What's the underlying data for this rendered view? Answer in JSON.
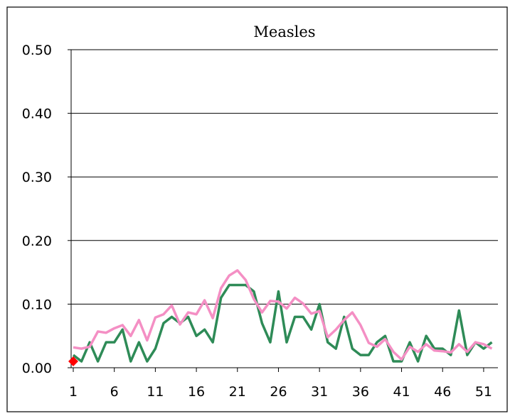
{
  "chart_data": {
    "type": "line",
    "title": "Measles",
    "xlabel": "",
    "ylabel": "",
    "ylim": [
      0,
      0.5
    ],
    "xlim": [
      1,
      52
    ],
    "yticks": [
      "0.00",
      "0.10",
      "0.20",
      "0.30",
      "0.40",
      "0.50"
    ],
    "xticks": [
      "1",
      "6",
      "11",
      "16",
      "21",
      "26",
      "31",
      "36",
      "41",
      "46",
      "51"
    ],
    "grid": true,
    "legend": "none",
    "series": [
      {
        "color": "#2e8b57",
        "x": [
          1,
          2,
          3,
          4,
          5,
          6,
          7,
          8,
          9,
          10,
          11,
          12,
          13,
          14,
          15,
          16,
          17,
          18,
          19,
          20,
          21,
          22,
          23,
          24,
          25,
          26,
          27,
          28,
          29,
          30,
          31,
          32,
          33,
          34,
          35,
          36,
          37,
          38,
          39,
          40,
          41,
          42,
          43,
          44,
          45,
          46,
          47,
          48,
          49,
          50,
          51,
          52
        ],
        "values": [
          0.02,
          0.01,
          0.04,
          0.01,
          0.04,
          0.04,
          0.06,
          0.01,
          0.04,
          0.01,
          0.03,
          0.07,
          0.08,
          0.07,
          0.08,
          0.05,
          0.06,
          0.04,
          0.11,
          0.13,
          0.13,
          0.13,
          0.12,
          0.07,
          0.04,
          0.12,
          0.04,
          0.08,
          0.08,
          0.06,
          0.1,
          0.04,
          0.03,
          0.08,
          0.03,
          0.02,
          0.02,
          0.04,
          0.05,
          0.01,
          0.01,
          0.04,
          0.01,
          0.05,
          0.03,
          0.03,
          0.02,
          0.09,
          0.02,
          0.04,
          0.03,
          0.04
        ]
      },
      {
        "color": "#f48fc4",
        "x": [
          1,
          2,
          3,
          4,
          5,
          6,
          7,
          8,
          9,
          10,
          11,
          12,
          13,
          14,
          15,
          16,
          17,
          18,
          19,
          20,
          21,
          22,
          23,
          24,
          25,
          26,
          27,
          28,
          29,
          30,
          31,
          32,
          33,
          34,
          35,
          36,
          37,
          38,
          39,
          40,
          41,
          42,
          43,
          44,
          45,
          46,
          47,
          48,
          49,
          50,
          51,
          52
        ],
        "values": [
          0.032,
          0.03,
          0.033,
          0.057,
          0.055,
          0.062,
          0.067,
          0.05,
          0.075,
          0.043,
          0.079,
          0.084,
          0.098,
          0.068,
          0.087,
          0.084,
          0.106,
          0.078,
          0.125,
          0.145,
          0.153,
          0.138,
          0.108,
          0.087,
          0.105,
          0.104,
          0.093,
          0.11,
          0.101,
          0.085,
          0.089,
          0.048,
          0.06,
          0.075,
          0.087,
          0.067,
          0.039,
          0.033,
          0.045,
          0.025,
          0.013,
          0.033,
          0.025,
          0.037,
          0.027,
          0.026,
          0.024,
          0.037,
          0.025,
          0.04,
          0.037,
          0.03
        ]
      },
      {
        "color": "#ff0000",
        "marker": "diamond",
        "x": [
          1
        ],
        "values": [
          0.01
        ]
      }
    ]
  }
}
